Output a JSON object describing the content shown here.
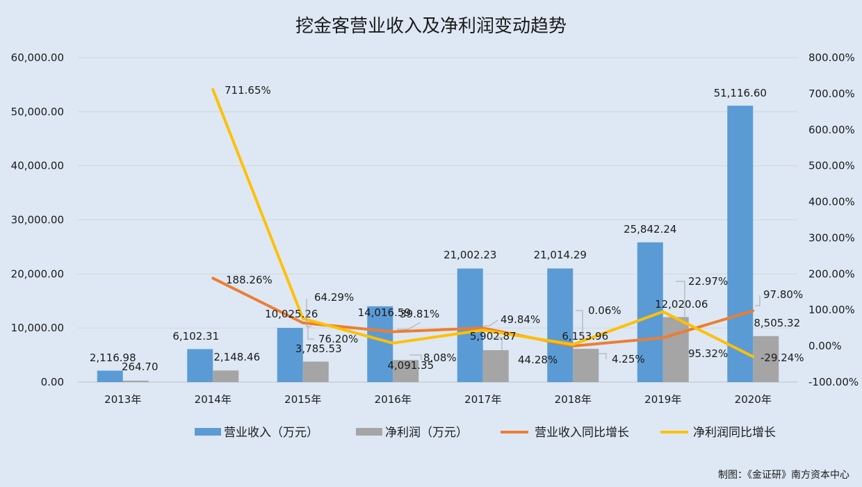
{
  "chart_data": {
    "type": "bar",
    "title": "挖金客营业收入及净利润变动趋势",
    "categories": [
      "2013年",
      "2014年",
      "2015年",
      "2016年",
      "2017年",
      "2018年",
      "2019年",
      "2020年"
    ],
    "y_left": {
      "range": [
        0,
        60000
      ],
      "ticks": [
        "0.00",
        "10,000.00",
        "20,000.00",
        "30,000.00",
        "40,000.00",
        "50,000.00",
        "60,000.00"
      ]
    },
    "y_right": {
      "range": [
        -100,
        800
      ],
      "ticks": [
        "-100.00%",
        "0.00%",
        "100.00%",
        "200.00%",
        "300.00%",
        "400.00%",
        "500.00%",
        "600.00%",
        "700.00%",
        "800.00%"
      ]
    },
    "grid": true,
    "legend_position": "bottom",
    "series": [
      {
        "name": "营业收入（万元）",
        "kind": "bar",
        "axis": "left",
        "color": "#5b9bd5",
        "values": [
          2116.98,
          6102.31,
          10025.26,
          14016.59,
          21002.23,
          21014.29,
          25842.24,
          51116.6
        ],
        "labels": [
          "2,116.98",
          "6,102.31",
          "10,025.26",
          "14,016.59",
          "21,002.23",
          "21,014.29",
          "25,842.24",
          "51,116.60"
        ]
      },
      {
        "name": "净利润（万元）",
        "kind": "bar",
        "axis": "left",
        "color": "#a5a5a5",
        "values": [
          264.7,
          2148.46,
          3785.53,
          4091.35,
          5902.87,
          6153.96,
          12020.06,
          8505.32
        ],
        "labels": [
          "264.70",
          "2,148.46",
          "3,785.53",
          "4,091.35",
          "5,902.87",
          "6,153.96",
          "12,020.06",
          "8,505.32"
        ]
      },
      {
        "name": "营业收入同比增长",
        "kind": "line",
        "axis": "right",
        "color": "#ed7d31",
        "values": [
          null,
          188.26,
          64.29,
          39.81,
          49.84,
          0.06,
          22.97,
          97.8
        ],
        "labels": [
          "",
          "188.26%",
          "64.29%",
          "39.81%",
          "49.84%",
          "0.06%",
          "22.97%",
          "97.80%"
        ]
      },
      {
        "name": "净利润同比增长",
        "kind": "line",
        "axis": "right",
        "color": "#ffc000",
        "values": [
          null,
          711.65,
          76.2,
          8.08,
          44.28,
          4.25,
          95.32,
          -29.24
        ],
        "labels": [
          "",
          "711.65%",
          "76.20%",
          "8.08%",
          "44.28%",
          "4.25%",
          "95.32%",
          "-29.24%"
        ]
      }
    ],
    "credit": "制图：《金证研》南方资本中心"
  }
}
